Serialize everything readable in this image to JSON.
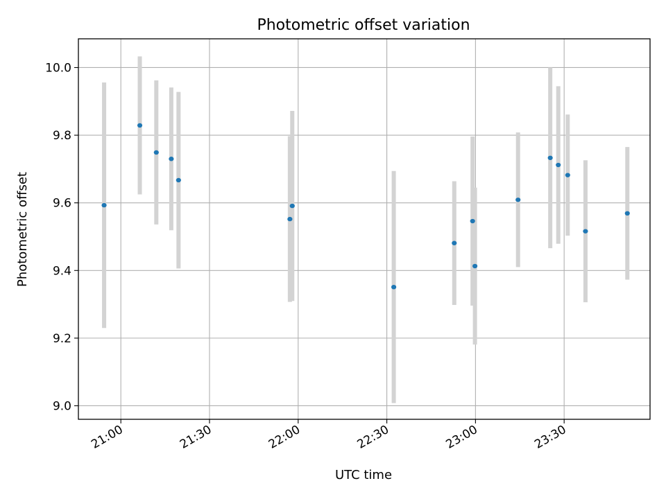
{
  "chart_data": {
    "type": "scatter",
    "title": "Photometric offset variation",
    "xlabel": "UTC time",
    "ylabel": "Photometric offset",
    "x_unit": "UTC time (HH:MM)",
    "xlim": [
      "20:45:38",
      "23:59:04"
    ],
    "ylim": [
      8.96,
      10.085
    ],
    "grid": true,
    "x_ticks": [
      "21:00",
      "21:30",
      "22:00",
      "22:30",
      "23:00",
      "23:30"
    ],
    "y_ticks": [
      "9.0",
      "9.2",
      "9.4",
      "9.6",
      "9.8",
      "10.0"
    ],
    "series": [
      {
        "marker_color": "#1f77b4",
        "errorbar_color": "#d3d3d3",
        "points": [
          {
            "x": "20:54:20",
            "y": 9.593,
            "yerr": 0.363
          },
          {
            "x": "21:06:25",
            "y": 9.829,
            "yerr": 0.204
          },
          {
            "x": "21:12:00",
            "y": 9.749,
            "yerr": 0.213
          },
          {
            "x": "21:17:04",
            "y": 9.73,
            "yerr": 0.211
          },
          {
            "x": "21:19:31",
            "y": 9.667,
            "yerr": 0.261
          },
          {
            "x": "21:57:12",
            "y": 9.552,
            "yerr": 0.245
          },
          {
            "x": "21:58:00",
            "y": 9.591,
            "yerr": 0.281
          },
          {
            "x": "22:32:21",
            "y": 9.351,
            "yerr": 0.343
          },
          {
            "x": "22:52:49",
            "y": 9.481,
            "yerr": 0.183
          },
          {
            "x": "22:59:01",
            "y": 9.546,
            "yerr": 0.25
          },
          {
            "x": "22:59:49",
            "y": 9.413,
            "yerr": 0.232
          },
          {
            "x": "23:14:24",
            "y": 9.609,
            "yerr": 0.199
          },
          {
            "x": "23:25:18",
            "y": 9.733,
            "yerr": 0.267
          },
          {
            "x": "23:28:01",
            "y": 9.712,
            "yerr": 0.233
          },
          {
            "x": "23:31:12",
            "y": 9.682,
            "yerr": 0.179
          },
          {
            "x": "23:37:13",
            "y": 9.516,
            "yerr": 0.21
          },
          {
            "x": "23:51:23",
            "y": 9.569,
            "yerr": 0.196
          }
        ]
      }
    ]
  }
}
